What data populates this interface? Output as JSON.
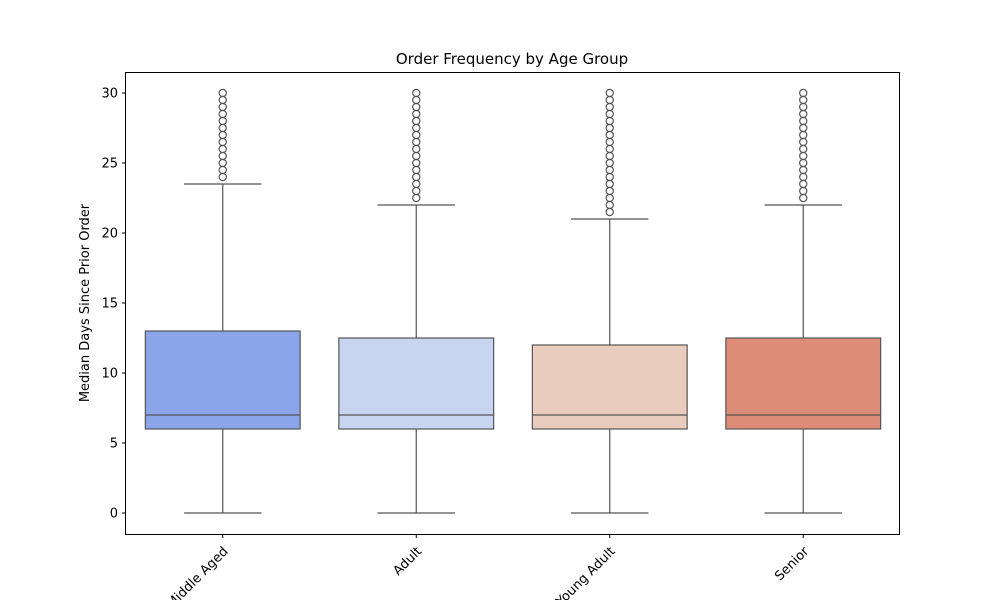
{
  "chart_data": {
    "type": "box",
    "title": "Order Frequency by Age Group",
    "xlabel": "",
    "ylabel": "Median Days Since Prior Order",
    "ylim": [
      -1.5,
      31.5
    ],
    "yticks": [
      0,
      5,
      10,
      15,
      20,
      25,
      30
    ],
    "grid": false,
    "legend": "none",
    "categories": [
      "Middle Aged",
      "Adult",
      "Young Adult",
      "Senior"
    ],
    "colors": [
      "#8aa5ea",
      "#c7d5f0",
      "#e9ccbd",
      "#dd8c77"
    ],
    "series": [
      {
        "whisker_low": 0,
        "q1": 6,
        "median": 7,
        "q3": 13,
        "whisker_high": 23.5,
        "outliers": [
          24,
          24.5,
          25,
          25.5,
          26,
          26.5,
          27,
          27.5,
          28,
          28.5,
          29,
          29.5,
          30
        ]
      },
      {
        "whisker_low": 0,
        "q1": 6,
        "median": 7,
        "q3": 12.5,
        "whisker_high": 22,
        "outliers": [
          22.5,
          23,
          23.5,
          24,
          24.5,
          25,
          25.5,
          26,
          26.5,
          27,
          27.5,
          28,
          28.5,
          29,
          29.5,
          30
        ]
      },
      {
        "whisker_low": 0,
        "q1": 6,
        "median": 7,
        "q3": 12,
        "whisker_high": 21,
        "outliers": [
          21.5,
          22,
          22.5,
          23,
          23.5,
          24,
          24.5,
          25,
          25.5,
          26,
          26.5,
          27,
          27.5,
          28,
          28.5,
          29,
          29.5,
          30
        ]
      },
      {
        "whisker_low": 0,
        "q1": 6,
        "median": 7,
        "q3": 12.5,
        "whisker_high": 22,
        "outliers": [
          22.5,
          23,
          23.5,
          24,
          24.5,
          25,
          25.5,
          26,
          26.5,
          27,
          27.5,
          28,
          28.5,
          29,
          29.5,
          30
        ]
      }
    ]
  }
}
